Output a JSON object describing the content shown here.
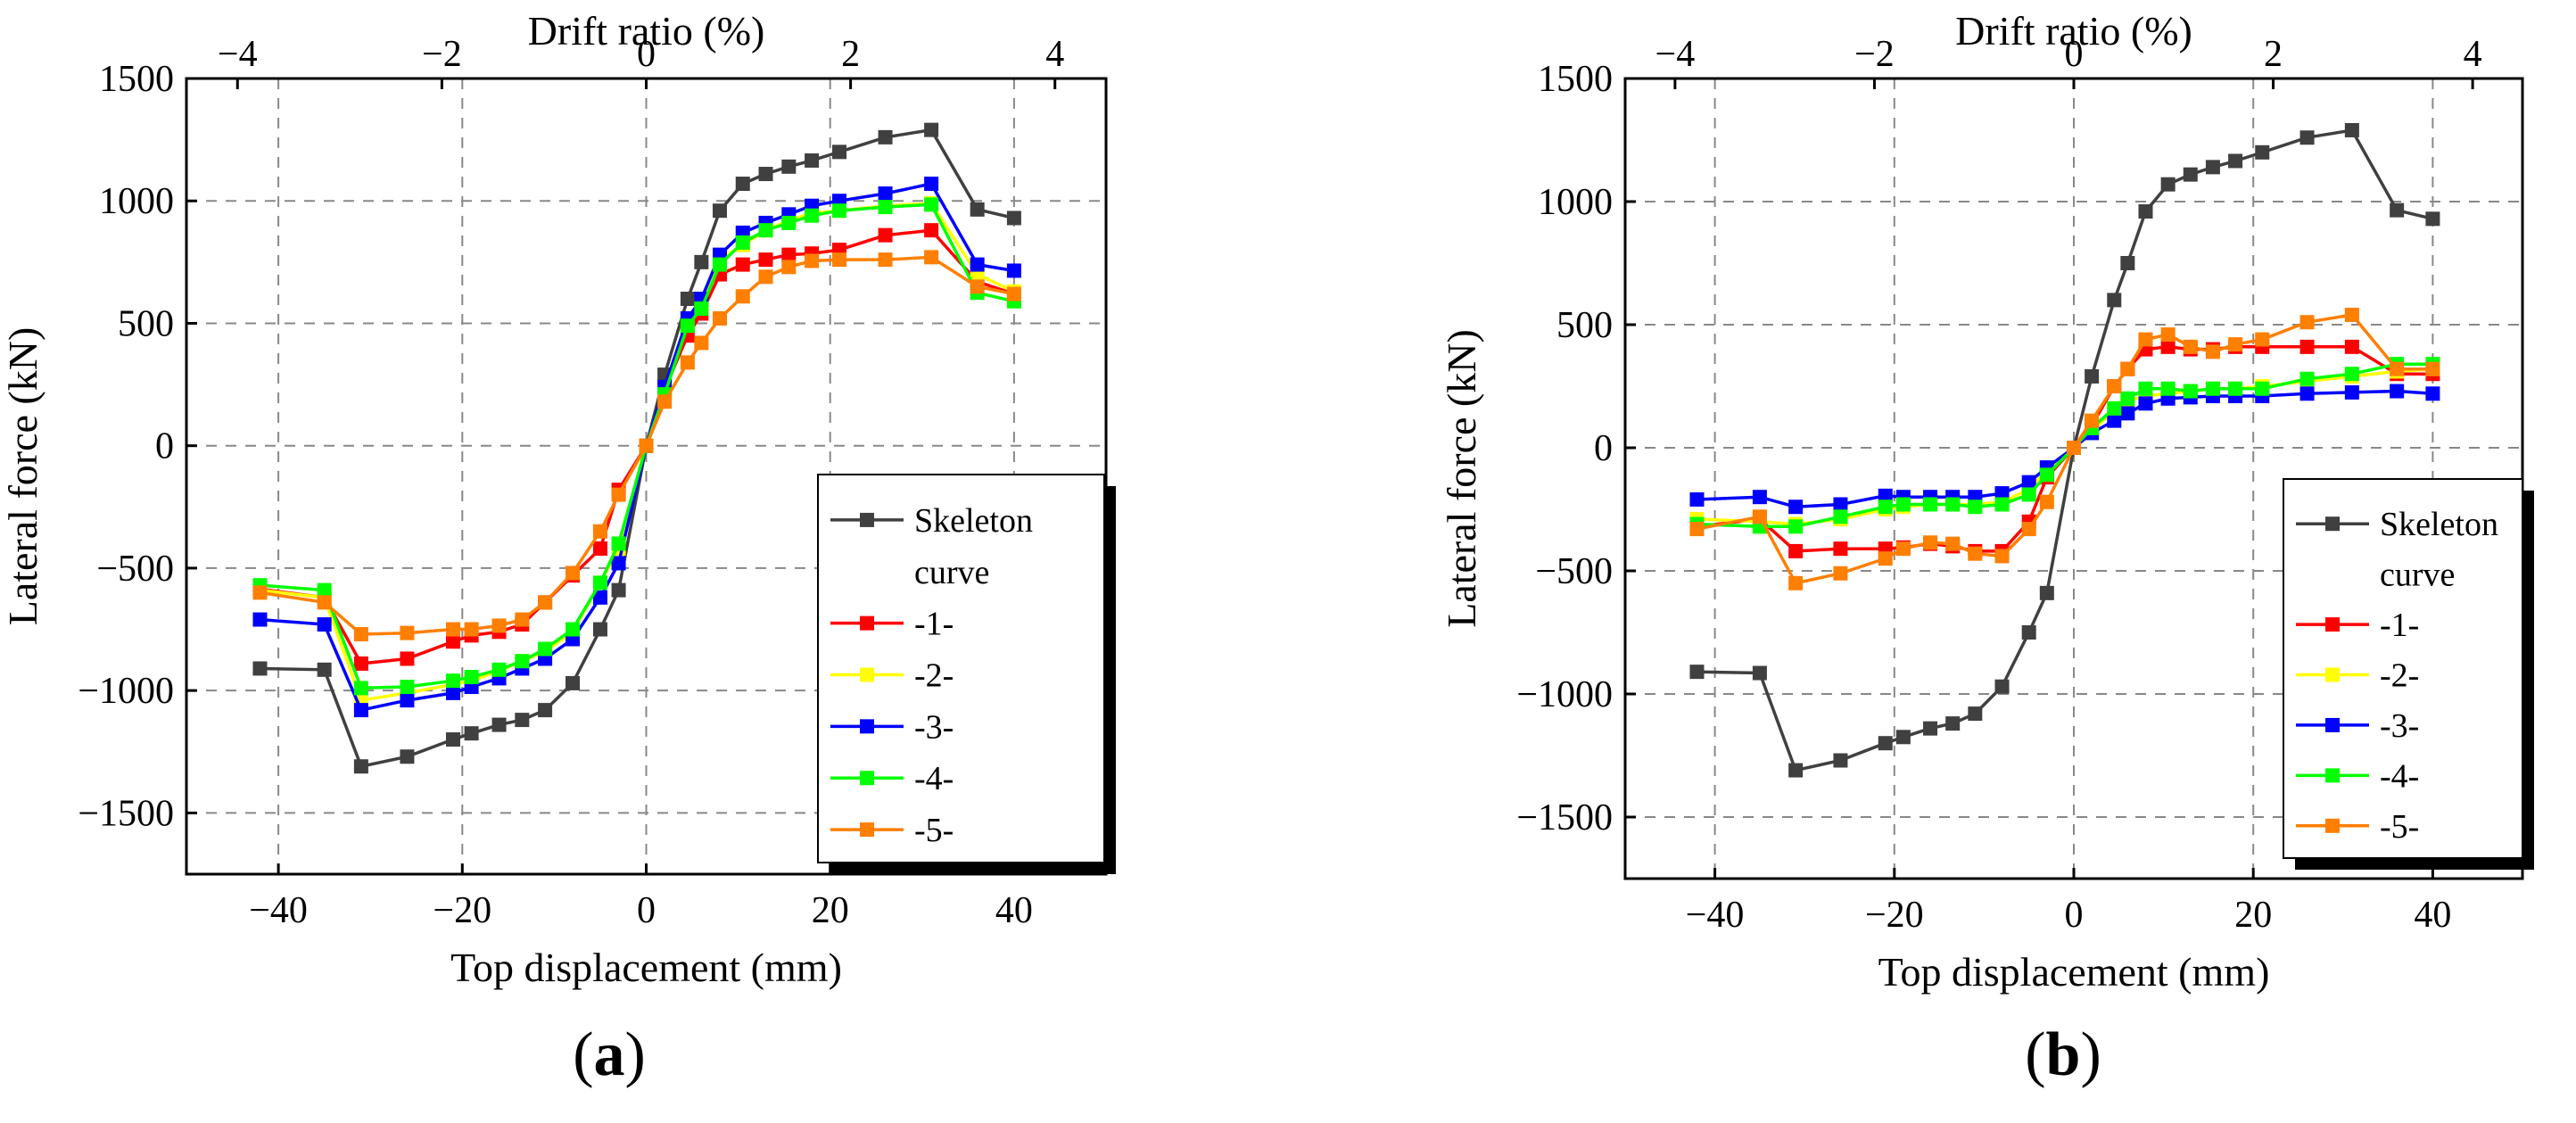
{
  "chart_data": [
    {
      "type": "line",
      "panel_label": "(a)",
      "title": "",
      "xlabel": "Top displacement (mm)",
      "ylabel": "Lateral force (kN)",
      "x2label": "Drift ratio (%)",
      "xlim": [
        -50,
        50
      ],
      "ylim": [
        -1750,
        1500
      ],
      "x2lim": [
        -4.5,
        4.5
      ],
      "xticks": [
        -40,
        -20,
        0,
        20,
        40
      ],
      "xtick_labels": [
        "−40",
        "−20",
        "0",
        "20",
        "40"
      ],
      "x2ticks": [
        -4,
        -2,
        0,
        2,
        4
      ],
      "x2tick_labels": [
        "−4",
        "−2",
        "0",
        "2",
        "4"
      ],
      "yticks": [
        -1500,
        -1000,
        -500,
        0,
        500,
        1000,
        1500
      ],
      "ytick_labels": [
        "−1500",
        "−1000",
        "−500",
        "0",
        "500",
        "1000",
        "1500"
      ],
      "grid": true,
      "legend": "bottom-right",
      "legend_title_lines": [
        "Skeleton",
        "curve"
      ],
      "series": [
        {
          "name": "Skeleton curve",
          "color": "#404040",
          "x": [
            -42,
            -35,
            -31,
            -26,
            -21,
            -19,
            -16,
            -13.5,
            -11,
            -8,
            -5,
            -3,
            0,
            2,
            4.5,
            6,
            8,
            10.5,
            13,
            15.5,
            18,
            21,
            26,
            31,
            36,
            40
          ],
          "y": [
            -910,
            -915,
            -1310,
            -1270,
            -1200,
            -1175,
            -1140,
            -1120,
            -1080,
            -970,
            -750,
            -590,
            0,
            290,
            600,
            750,
            960,
            1070,
            1110,
            1140,
            1165,
            1200,
            1260,
            1290,
            965,
            930
          ]
        },
        {
          "name": "-1-",
          "color": "#ff0000",
          "x": [
            -42,
            -35,
            -31,
            -26,
            -21,
            -19,
            -16,
            -13.5,
            -11,
            -8,
            -5,
            -3,
            0,
            2,
            4.5,
            6,
            8,
            10.5,
            13,
            15.5,
            18,
            21,
            26,
            31,
            36,
            40
          ],
          "y": [
            -585,
            -620,
            -890,
            -870,
            -800,
            -775,
            -760,
            -730,
            -640,
            -530,
            -420,
            -180,
            0,
            230,
            450,
            540,
            700,
            740,
            760,
            780,
            785,
            800,
            860,
            880,
            670,
            620
          ]
        },
        {
          "name": "-2-",
          "color": "#ffff00",
          "x": [
            -42,
            -35,
            -31,
            -26,
            -21,
            -19,
            -16,
            -13.5,
            -11,
            -8,
            -5,
            -3,
            0,
            2,
            4.5,
            6,
            8,
            10.5,
            13,
            15.5,
            18,
            21,
            26,
            31,
            36,
            40
          ],
          "y": [
            -590,
            -620,
            -1040,
            -1010,
            -975,
            -960,
            -920,
            -880,
            -840,
            -760,
            -560,
            -420,
            0,
            220,
            500,
            570,
            760,
            820,
            880,
            920,
            950,
            960,
            980,
            990,
            700,
            630
          ]
        },
        {
          "name": "-3-",
          "color": "#0000ff",
          "x": [
            -42,
            -35,
            -31,
            -26,
            -21,
            -19,
            -16,
            -13.5,
            -11,
            -8,
            -5,
            -3,
            0,
            2,
            4.5,
            6,
            8,
            10.5,
            13,
            15.5,
            18,
            21,
            26,
            31,
            36,
            40
          ],
          "y": [
            -710,
            -730,
            -1080,
            -1040,
            -1010,
            -985,
            -950,
            -910,
            -870,
            -790,
            -620,
            -480,
            0,
            240,
            520,
            600,
            780,
            870,
            910,
            945,
            980,
            1000,
            1030,
            1070,
            740,
            715
          ]
        },
        {
          "name": "-4-",
          "color": "#00ff00",
          "x": [
            -42,
            -35,
            -31,
            -26,
            -21,
            -19,
            -16,
            -13.5,
            -11,
            -8,
            -5,
            -3,
            0,
            2,
            4.5,
            6,
            8,
            10.5,
            13,
            15.5,
            18,
            21,
            26,
            31,
            36,
            40
          ],
          "y": [
            -570,
            -590,
            -990,
            -985,
            -960,
            -945,
            -915,
            -880,
            -830,
            -750,
            -560,
            -400,
            0,
            210,
            490,
            560,
            740,
            830,
            880,
            910,
            940,
            960,
            975,
            985,
            625,
            590
          ]
        },
        {
          "name": "-5-",
          "color": "#ff7f00",
          "x": [
            -42,
            -35,
            -31,
            -26,
            -21,
            -19,
            -16,
            -13.5,
            -11,
            -8,
            -5,
            -3,
            0,
            2,
            4.5,
            6,
            8,
            10.5,
            13,
            15.5,
            18,
            21,
            26,
            31,
            36,
            40
          ],
          "y": [
            -600,
            -640,
            -770,
            -765,
            -750,
            -750,
            -735,
            -710,
            -640,
            -520,
            -350,
            -200,
            0,
            180,
            340,
            420,
            520,
            610,
            690,
            730,
            755,
            760,
            760,
            770,
            650,
            620
          ]
        }
      ]
    },
    {
      "type": "line",
      "panel_label": "(b)",
      "title": "",
      "xlabel": "Top displacement (mm)",
      "ylabel": "Lateral force (kN)",
      "x2label": "Drift ratio (%)",
      "xlim": [
        -50,
        50
      ],
      "ylim": [
        -1750,
        1500
      ],
      "x2lim": [
        -4.5,
        4.5
      ],
      "xticks": [
        -40,
        -20,
        0,
        20,
        40
      ],
      "xtick_labels": [
        "−40",
        "−20",
        "0",
        "20",
        "40"
      ],
      "x2ticks": [
        -4,
        -2,
        0,
        2,
        4
      ],
      "x2tick_labels": [
        "−4",
        "−2",
        "0",
        "2",
        "4"
      ],
      "yticks": [
        -1500,
        -1000,
        -500,
        0,
        500,
        1000,
        1500
      ],
      "ytick_labels": [
        "−1500",
        "−1000",
        "−500",
        "0",
        "500",
        "1000",
        "1500"
      ],
      "grid": true,
      "legend": "bottom-right",
      "legend_title_lines": [
        "Skeleton",
        "curve"
      ],
      "series": [
        {
          "name": "Skeleton curve",
          "color": "#404040",
          "x": [
            -42,
            -35,
            -31,
            -26,
            -21,
            -19,
            -16,
            -13.5,
            -11,
            -8,
            -5,
            -3,
            0,
            2,
            4.5,
            6,
            8,
            10.5,
            13,
            15.5,
            18,
            21,
            26,
            31,
            36,
            40
          ],
          "y": [
            -910,
            -915,
            -1310,
            -1270,
            -1200,
            -1175,
            -1140,
            -1120,
            -1080,
            -970,
            -750,
            -590,
            0,
            290,
            600,
            750,
            960,
            1070,
            1110,
            1140,
            1165,
            1200,
            1260,
            1290,
            965,
            930
          ]
        },
        {
          "name": "-1-",
          "color": "#ff0000",
          "x": [
            -42,
            -35,
            -31,
            -26,
            -21,
            -19,
            -16,
            -13.5,
            -11,
            -8,
            -5,
            -3,
            0,
            2,
            4.5,
            6,
            8,
            10.5,
            13,
            15.5,
            18,
            21,
            26,
            31,
            36,
            40
          ],
          "y": [
            -320,
            -290,
            -420,
            -410,
            -410,
            -405,
            -390,
            -400,
            -420,
            -420,
            -300,
            -120,
            0,
            90,
            250,
            320,
            400,
            410,
            400,
            400,
            410,
            410,
            410,
            410,
            300,
            300
          ]
        },
        {
          "name": "-2-",
          "color": "#ffff00",
          "x": [
            -42,
            -35,
            -31,
            -26,
            -21,
            -19,
            -16,
            -13.5,
            -11,
            -8,
            -5,
            -3,
            0,
            2,
            4.5,
            6,
            8,
            10.5,
            13,
            15.5,
            18,
            21,
            26,
            31,
            36,
            40
          ],
          "y": [
            -290,
            -300,
            -310,
            -290,
            -250,
            -240,
            -230,
            -230,
            -230,
            -220,
            -170,
            -90,
            0,
            70,
            150,
            190,
            210,
            220,
            230,
            240,
            240,
            250,
            270,
            290,
            310,
            320
          ]
        },
        {
          "name": "-3-",
          "color": "#0000ff",
          "x": [
            -42,
            -35,
            -31,
            -26,
            -21,
            -19,
            -16,
            -13.5,
            -11,
            -8,
            -5,
            -3,
            0,
            2,
            4.5,
            6,
            8,
            10.5,
            13,
            15.5,
            18,
            21,
            26,
            31,
            36,
            40
          ],
          "y": [
            -210,
            -200,
            -240,
            -230,
            -195,
            -200,
            -200,
            -200,
            -200,
            -185,
            -140,
            -80,
            0,
            60,
            110,
            140,
            180,
            200,
            205,
            210,
            210,
            210,
            220,
            225,
            230,
            220
          ]
        },
        {
          "name": "-4-",
          "color": "#00ff00",
          "x": [
            -42,
            -35,
            -31,
            -26,
            -21,
            -19,
            -16,
            -13.5,
            -11,
            -8,
            -5,
            -3,
            0,
            2,
            4.5,
            6,
            8,
            10.5,
            13,
            15.5,
            18,
            21,
            26,
            31,
            36,
            40
          ],
          "y": [
            -310,
            -320,
            -320,
            -280,
            -240,
            -230,
            -230,
            -230,
            -240,
            -230,
            -190,
            -110,
            0,
            80,
            160,
            200,
            240,
            240,
            230,
            240,
            240,
            240,
            280,
            300,
            340,
            340
          ]
        },
        {
          "name": "-5-",
          "color": "#ff7f00",
          "x": [
            -42,
            -35,
            -31,
            -26,
            -21,
            -19,
            -16,
            -13.5,
            -11,
            -8,
            -5,
            -3,
            0,
            2,
            4.5,
            6,
            8,
            10.5,
            13,
            15.5,
            18,
            21,
            26,
            31,
            36,
            40
          ],
          "y": [
            -330,
            -280,
            -550,
            -510,
            -450,
            -410,
            -385,
            -390,
            -430,
            -440,
            -330,
            -220,
            0,
            110,
            250,
            320,
            440,
            460,
            410,
            390,
            420,
            440,
            510,
            540,
            320,
            320
          ]
        }
      ]
    }
  ]
}
